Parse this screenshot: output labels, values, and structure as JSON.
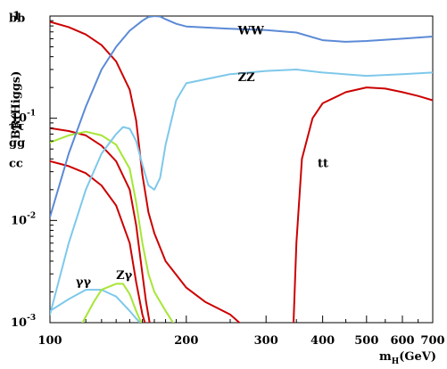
{
  "chart_data": {
    "type": "line",
    "ylabel": "BR(Higgs)",
    "xlabel_main": "m",
    "xlabel_sub": "H",
    "xlabel_unit": "(GeV)",
    "xscale": "log",
    "yscale": "log",
    "xlim": [
      100,
      700
    ],
    "ylim": [
      0.001,
      1
    ],
    "grid": false,
    "legend": "none (curves labelled directly)",
    "x_ticks": [
      {
        "v": 100,
        "label": "100"
      },
      {
        "v": 200,
        "label": "200"
      },
      {
        "v": 300,
        "label": "300"
      },
      {
        "v": 400,
        "label": "400"
      },
      {
        "v": 500,
        "label": "500"
      },
      {
        "v": 600,
        "label": "600"
      },
      {
        "v": 700,
        "label": "700"
      }
    ],
    "y_ticks": [
      {
        "v": 1,
        "base": "1",
        "exp": ""
      },
      {
        "v": 0.1,
        "base": "10",
        "exp": "-1"
      },
      {
        "v": 0.01,
        "base": "10",
        "exp": "-2"
      },
      {
        "v": 0.001,
        "base": "10",
        "exp": "-3"
      }
    ],
    "series": [
      {
        "key": "bb",
        "color": "#cc0000",
        "label": {
          "text": "bb",
          "side": "left",
          "at_y": 0.95
        },
        "points": [
          [
            100,
            0.88
          ],
          [
            110,
            0.78
          ],
          [
            120,
            0.66
          ],
          [
            130,
            0.52
          ],
          [
            140,
            0.36
          ],
          [
            150,
            0.19
          ],
          [
            155,
            0.095
          ],
          [
            160,
            0.028
          ],
          [
            165,
            0.012
          ],
          [
            170,
            0.0075
          ],
          [
            180,
            0.004
          ],
          [
            200,
            0.0022
          ],
          [
            220,
            0.0016
          ],
          [
            250,
            0.0012
          ],
          [
            262,
            0.001
          ]
        ]
      },
      {
        "key": "tautau",
        "color": "#cc0000",
        "label": {
          "text": "ττ",
          "side": "left",
          "at_y": 0.083
        },
        "points": [
          [
            100,
            0.08
          ],
          [
            110,
            0.075
          ],
          [
            120,
            0.068
          ],
          [
            130,
            0.054
          ],
          [
            140,
            0.038
          ],
          [
            150,
            0.02
          ],
          [
            155,
            0.009
          ],
          [
            160,
            0.003
          ],
          [
            163,
            0.0016
          ],
          [
            166,
            0.001
          ]
        ]
      },
      {
        "key": "gg",
        "color": "#a6e635",
        "label": {
          "text": "gg",
          "side": "left",
          "at_y": 0.057
        },
        "points": [
          [
            100,
            0.058
          ],
          [
            110,
            0.068
          ],
          [
            120,
            0.074
          ],
          [
            130,
            0.068
          ],
          [
            140,
            0.055
          ],
          [
            150,
            0.032
          ],
          [
            155,
            0.015
          ],
          [
            160,
            0.006
          ],
          [
            165,
            0.003
          ],
          [
            170,
            0.002
          ],
          [
            180,
            0.0013
          ],
          [
            187,
            0.001
          ]
        ]
      },
      {
        "key": "cc",
        "color": "#cc0000",
        "label": {
          "text": "cc",
          "side": "left",
          "at_y": 0.036
        },
        "points": [
          [
            100,
            0.038
          ],
          [
            110,
            0.034
          ],
          [
            120,
            0.029
          ],
          [
            130,
            0.022
          ],
          [
            140,
            0.014
          ],
          [
            150,
            0.006
          ],
          [
            155,
            0.0025
          ],
          [
            160,
            0.0012
          ],
          [
            162,
            0.001
          ]
        ]
      },
      {
        "key": "WW",
        "color": "#5b8ad6",
        "label": {
          "text": "WW",
          "side": "curve",
          "at_x": 260,
          "at_y": 0.72
        },
        "points": [
          [
            100,
            0.0108
          ],
          [
            110,
            0.045
          ],
          [
            120,
            0.13
          ],
          [
            130,
            0.3
          ],
          [
            140,
            0.5
          ],
          [
            150,
            0.72
          ],
          [
            160,
            0.9
          ],
          [
            165,
            0.98
          ],
          [
            170,
            1
          ],
          [
            175,
            0.99
          ],
          [
            180,
            0.93
          ],
          [
            190,
            0.84
          ],
          [
            200,
            0.79
          ],
          [
            250,
            0.75
          ],
          [
            300,
            0.73
          ],
          [
            350,
            0.69
          ],
          [
            400,
            0.58
          ],
          [
            450,
            0.56
          ],
          [
            500,
            0.57
          ],
          [
            600,
            0.6
          ],
          [
            700,
            0.63
          ]
        ]
      },
      {
        "key": "ZZ",
        "color": "#7ec8ea",
        "label": {
          "text": "ZZ",
          "side": "curve",
          "at_x": 260,
          "at_y": 0.25
        },
        "points": [
          [
            100,
            0.0012
          ],
          [
            110,
            0.006
          ],
          [
            120,
            0.02
          ],
          [
            130,
            0.045
          ],
          [
            140,
            0.07
          ],
          [
            145,
            0.082
          ],
          [
            150,
            0.079
          ],
          [
            155,
            0.06
          ],
          [
            160,
            0.035
          ],
          [
            165,
            0.022
          ],
          [
            170,
            0.02
          ],
          [
            175,
            0.026
          ],
          [
            180,
            0.055
          ],
          [
            190,
            0.15
          ],
          [
            200,
            0.22
          ],
          [
            250,
            0.27
          ],
          [
            300,
            0.29
          ],
          [
            350,
            0.3
          ],
          [
            400,
            0.28
          ],
          [
            500,
            0.26
          ],
          [
            600,
            0.27
          ],
          [
            700,
            0.28
          ]
        ]
      },
      {
        "key": "tt",
        "color": "#cc0000",
        "label": {
          "text": "tt",
          "side": "curve",
          "at_x": 390,
          "at_y": 0.036
        },
        "points": [
          [
            345,
            0.001
          ],
          [
            350,
            0.006
          ],
          [
            360,
            0.04
          ],
          [
            380,
            0.1
          ],
          [
            400,
            0.14
          ],
          [
            450,
            0.18
          ],
          [
            500,
            0.2
          ],
          [
            550,
            0.195
          ],
          [
            600,
            0.18
          ],
          [
            650,
            0.165
          ],
          [
            700,
            0.15
          ]
        ]
      },
      {
        "key": "gammagamma",
        "color": "#7ec8ea",
        "label": {
          "text": "γγ",
          "side": "curve",
          "at_x": 114,
          "at_y": 0.0025
        },
        "points": [
          [
            100,
            0.0013
          ],
          [
            110,
            0.0017
          ],
          [
            120,
            0.0021
          ],
          [
            130,
            0.0021
          ],
          [
            140,
            0.0018
          ],
          [
            150,
            0.0013
          ],
          [
            155,
            0.0011
          ],
          [
            158,
            0.001
          ]
        ]
      },
      {
        "key": "Zgamma",
        "color": "#a6e635",
        "label": {
          "text": "Zγ",
          "side": "curve",
          "at_x": 140,
          "at_y": 0.0029
        },
        "points": [
          [
            118,
            0.001
          ],
          [
            125,
            0.0016
          ],
          [
            130,
            0.0021
          ],
          [
            140,
            0.0024
          ],
          [
            145,
            0.0024
          ],
          [
            150,
            0.0019
          ],
          [
            155,
            0.0013
          ],
          [
            159,
            0.001
          ]
        ]
      }
    ]
  }
}
